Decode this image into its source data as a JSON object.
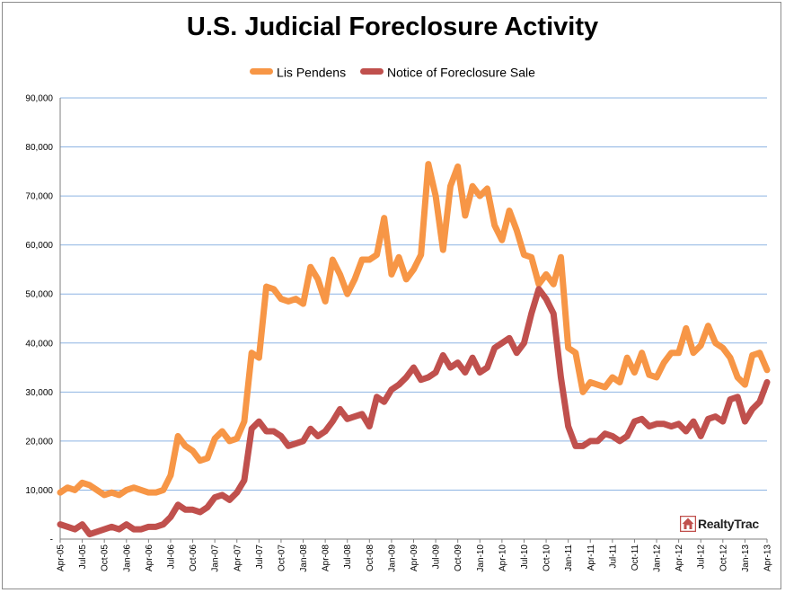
{
  "chart_data": {
    "type": "line",
    "title": "U.S. Judicial Foreclosure Activity",
    "xlabel": "",
    "ylabel": "",
    "ylim": [
      0,
      90000
    ],
    "y_ticks": [
      0,
      10000,
      20000,
      30000,
      40000,
      50000,
      60000,
      70000,
      80000,
      90000
    ],
    "y_tick_labels": [
      "-",
      "10,000",
      "20,000",
      "30,000",
      "40,000",
      "50,000",
      "60,000",
      "70,000",
      "80,000",
      "90,000"
    ],
    "x_tick_labels": [
      "Apr-05",
      "Jul-05",
      "Oct-05",
      "Jan-06",
      "Apr-06",
      "Jul-06",
      "Oct-06",
      "Jan-07",
      "Apr-07",
      "Jul-07",
      "Oct-07",
      "Jan-08",
      "Apr-08",
      "Jul-08",
      "Oct-08",
      "Jan-09",
      "Apr-09",
      "Jul-09",
      "Oct-09",
      "Jan-10",
      "Apr-10",
      "Jul-10",
      "Oct-10",
      "Jan-11",
      "Apr-11",
      "Jul-11",
      "Oct-11",
      "Jan-12",
      "Apr-12",
      "Jul-12",
      "Oct-12",
      "Jan-13",
      "Apr-13"
    ],
    "x": [
      "Apr-05",
      "May-05",
      "Jun-05",
      "Jul-05",
      "Aug-05",
      "Sep-05",
      "Oct-05",
      "Nov-05",
      "Dec-05",
      "Jan-06",
      "Feb-06",
      "Mar-06",
      "Apr-06",
      "May-06",
      "Jun-06",
      "Jul-06",
      "Aug-06",
      "Sep-06",
      "Oct-06",
      "Nov-06",
      "Dec-06",
      "Jan-07",
      "Feb-07",
      "Mar-07",
      "Apr-07",
      "May-07",
      "Jun-07",
      "Jul-07",
      "Aug-07",
      "Sep-07",
      "Oct-07",
      "Nov-07",
      "Dec-07",
      "Jan-08",
      "Feb-08",
      "Mar-08",
      "Apr-08",
      "May-08",
      "Jun-08",
      "Jul-08",
      "Aug-08",
      "Sep-08",
      "Oct-08",
      "Nov-08",
      "Dec-08",
      "Jan-09",
      "Feb-09",
      "Mar-09",
      "Apr-09",
      "May-09",
      "Jun-09",
      "Jul-09",
      "Aug-09",
      "Sep-09",
      "Oct-09",
      "Nov-09",
      "Dec-09",
      "Jan-10",
      "Feb-10",
      "Mar-10",
      "Apr-10",
      "May-10",
      "Jun-10",
      "Jul-10",
      "Aug-10",
      "Sep-10",
      "Oct-10",
      "Nov-10",
      "Dec-10",
      "Jan-11",
      "Feb-11",
      "Mar-11",
      "Apr-11",
      "May-11",
      "Jun-11",
      "Jul-11",
      "Aug-11",
      "Sep-11",
      "Oct-11",
      "Nov-11",
      "Dec-11",
      "Jan-12",
      "Feb-12",
      "Mar-12",
      "Apr-12",
      "May-12",
      "Jun-12",
      "Jul-12",
      "Aug-12",
      "Sep-12",
      "Oct-12",
      "Nov-12",
      "Dec-12",
      "Jan-13",
      "Feb-13",
      "Mar-13",
      "Apr-13"
    ],
    "legend_position": "top",
    "grid": true,
    "series": [
      {
        "name": "Lis Pendens",
        "color": "#F79646",
        "values": [
          9500,
          10500,
          10000,
          11500,
          11000,
          10000,
          9000,
          9500,
          9000,
          10000,
          10500,
          10000,
          9500,
          9500,
          10000,
          13000,
          21000,
          19000,
          18000,
          16000,
          16500,
          20500,
          22000,
          20000,
          20500,
          24000,
          38000,
          37000,
          51500,
          51000,
          49000,
          48500,
          49000,
          48000,
          55500,
          53000,
          48500,
          57000,
          54000,
          50000,
          53000,
          57000,
          57000,
          58000,
          65500,
          54000,
          57500,
          53000,
          55000,
          58000,
          76500,
          70000,
          59000,
          72000,
          76000,
          66000,
          72000,
          70000,
          71500,
          64000,
          61000,
          67000,
          63000,
          58000,
          57500,
          52000,
          54000,
          52000,
          57500,
          39000,
          38000,
          30000,
          32000,
          31500,
          31000,
          33000,
          32000,
          37000,
          34000,
          38000,
          33500,
          33000,
          36000,
          38000,
          38000,
          43000,
          38000,
          39500,
          43500,
          40000,
          39000,
          37000,
          33000,
          31500,
          37500,
          38000,
          34500
        ]
      },
      {
        "name": "Notice of Foreclosure Sale",
        "color": "#C0504D",
        "values": [
          3000,
          2500,
          2000,
          3000,
          1000,
          1500,
          2000,
          2500,
          2000,
          3000,
          2000,
          2000,
          2500,
          2500,
          3000,
          4500,
          7000,
          6000,
          6000,
          5500,
          6500,
          8500,
          9000,
          8000,
          9500,
          12000,
          22500,
          24000,
          22000,
          22000,
          21000,
          19000,
          19500,
          20000,
          22500,
          21000,
          22000,
          24000,
          26500,
          24500,
          25000,
          25500,
          23000,
          29000,
          28000,
          30500,
          31500,
          33000,
          35000,
          32500,
          33000,
          34000,
          37500,
          35000,
          36000,
          34000,
          37000,
          34000,
          35000,
          39000,
          40000,
          41000,
          38000,
          40000,
          46000,
          51000,
          49000,
          46000,
          33000,
          23000,
          19000,
          19000,
          20000,
          20000,
          21500,
          21000,
          20000,
          21000,
          24000,
          24500,
          23000,
          23500,
          23500,
          23000,
          23500,
          22000,
          24000,
          21000,
          24500,
          25000,
          24000,
          28500,
          29000,
          24000,
          26500,
          28000,
          32000
        ]
      }
    ]
  },
  "branding": {
    "logo_text": "RealtyTrac"
  }
}
